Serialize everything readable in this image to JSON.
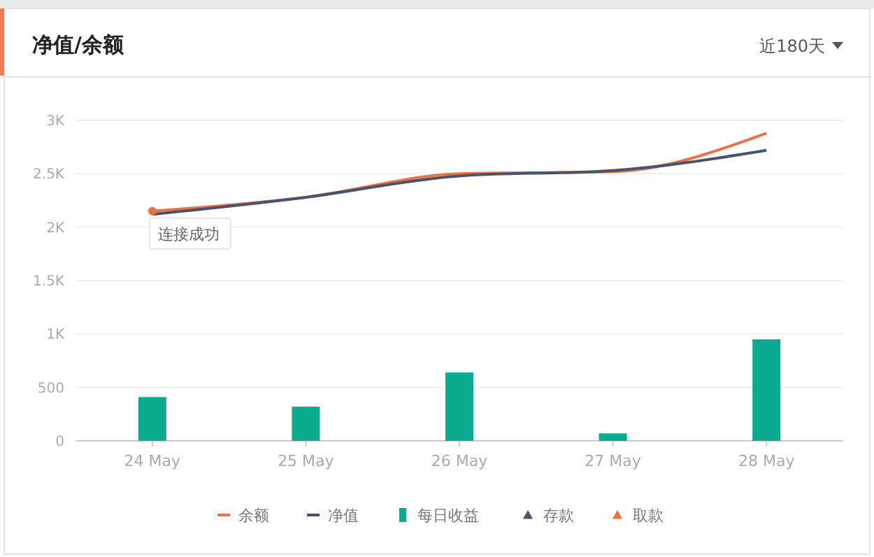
{
  "chart_data": {
    "type": "bar",
    "title": "净值/余额",
    "annotations": [
      "近180天",
      {
        "text": "连接成功",
        "x": "24 May",
        "y": 2150
      }
    ],
    "categories": [
      "24 May",
      "25 May",
      "26 May",
      "27 May",
      "28 May"
    ],
    "series": [
      {
        "name": "余额",
        "type": "line",
        "color": "#e8734a",
        "values": [
          2150,
          2280,
          2500,
          2520,
          2880
        ]
      },
      {
        "name": "净值",
        "type": "line",
        "color": "#4a5468",
        "values": [
          2120,
          2280,
          2480,
          2530,
          2720
        ]
      },
      {
        "name": "每日收益",
        "color": "#0aab8f",
        "values": [
          410,
          320,
          640,
          70,
          950
        ]
      },
      {
        "name": "存款",
        "type": "scatter",
        "marker": "triangle",
        "color": "#4a5468",
        "values": [
          null,
          null,
          null,
          null,
          null
        ]
      },
      {
        "name": "取款",
        "type": "scatter",
        "marker": "triangle",
        "color": "#e8734a",
        "values": [
          null,
          null,
          null,
          null,
          null
        ]
      }
    ],
    "ylim": [
      0,
      3000
    ],
    "yticks": [
      {
        "value": 0,
        "label": "0"
      },
      {
        "value": 500,
        "label": "500"
      },
      {
        "value": 1000,
        "label": "1K"
      },
      {
        "value": 1500,
        "label": "1.5K"
      },
      {
        "value": 2000,
        "label": "2K"
      },
      {
        "value": 2500,
        "label": "2.5K"
      },
      {
        "value": 3000,
        "label": "3K"
      }
    ],
    "grid": "y",
    "legend": "bottom",
    "line_style": "solid"
  }
}
